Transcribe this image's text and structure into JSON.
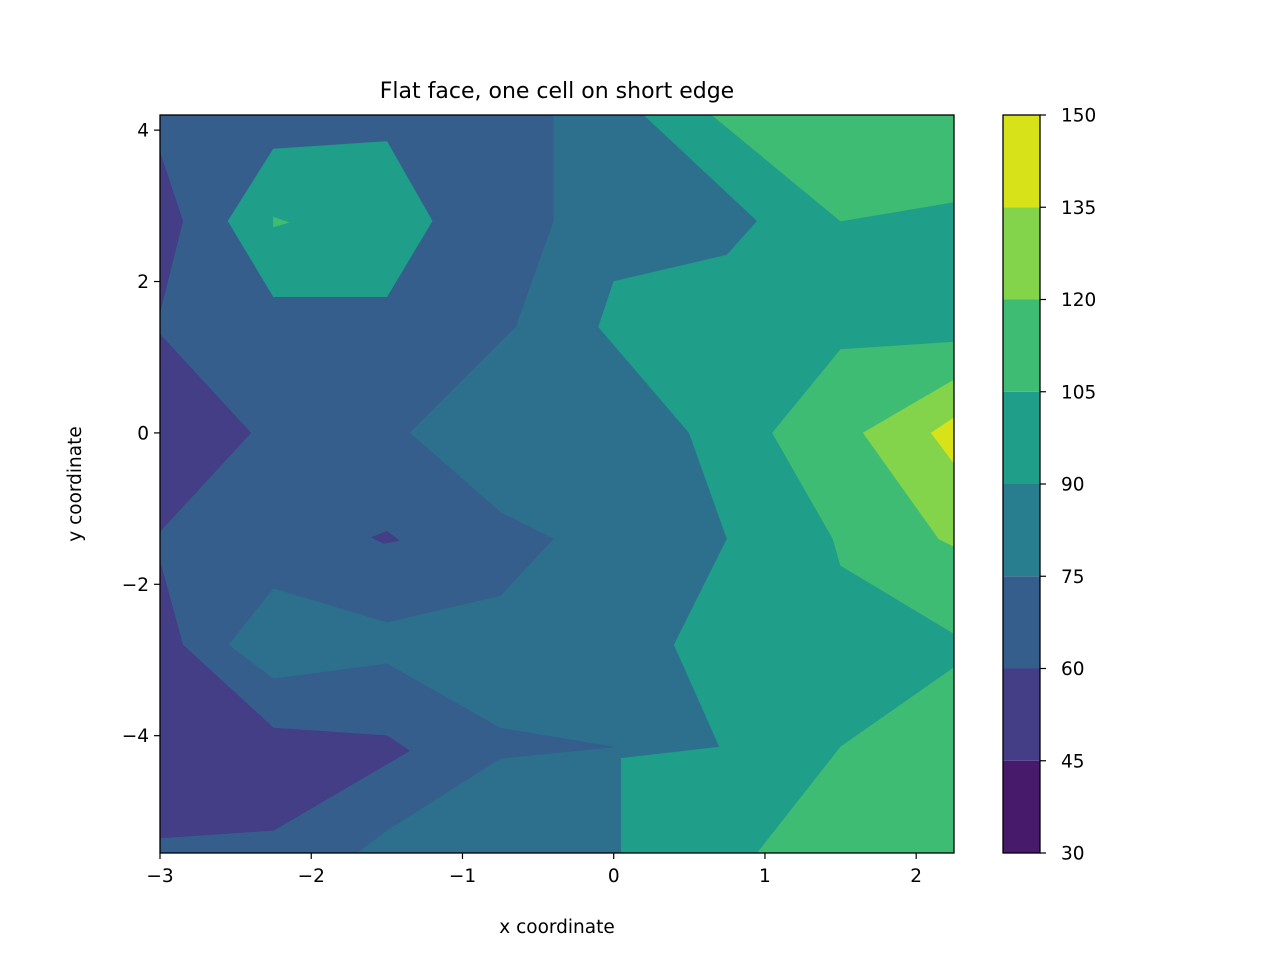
{
  "chart_data": {
    "type": "contourf",
    "title": "Flat face, one cell on short edge",
    "xlabel": "x coordinate",
    "ylabel": "y coordinate",
    "xlim": [
      -3.0,
      2.25
    ],
    "ylim": [
      -5.55,
      4.2
    ],
    "x_ticks": [
      -3,
      -2,
      -1,
      0,
      1,
      2
    ],
    "x_tick_labels": [
      "−3",
      "−2",
      "−1",
      "0",
      "1",
      "2"
    ],
    "y_ticks": [
      -4,
      -2,
      0,
      2,
      4
    ],
    "y_tick_labels": [
      "−4",
      "−2",
      "0",
      "2",
      "4"
    ],
    "grid": false,
    "colormap": "viridis",
    "levels": [
      30,
      45,
      60,
      75,
      90,
      105,
      120,
      135,
      150
    ],
    "colorbar_tick_labels": [
      "30",
      "45",
      "60",
      "75",
      "90",
      "105",
      "120",
      "135",
      "150"
    ],
    "level_colors": [
      "#481a6c",
      "#433e85",
      "#355e8d",
      "#287d8e",
      "#1f9e89",
      "#3fbc73",
      "#84d44b",
      "#d8e219"
    ],
    "background_color": "#2d708e",
    "regions": [
      {
        "level_index": 2,
        "points": [
          [
            -3.0,
            4.2
          ],
          [
            -0.4,
            4.2
          ],
          [
            -0.4,
            2.8
          ],
          [
            -0.65,
            1.4
          ],
          [
            -1.35,
            0.0
          ],
          [
            -0.75,
            -1.05
          ],
          [
            -0.4,
            -1.4
          ],
          [
            -0.75,
            -2.15
          ],
          [
            -1.5,
            -2.5
          ],
          [
            -2.25,
            -2.05
          ],
          [
            -2.55,
            -2.8
          ],
          [
            -2.25,
            -3.25
          ],
          [
            -1.5,
            -3.05
          ],
          [
            -0.75,
            -3.9
          ],
          [
            0.0,
            -4.15
          ],
          [
            -0.75,
            -4.3
          ],
          [
            -1.5,
            -5.25
          ],
          [
            -1.7,
            -5.55
          ],
          [
            -3.0,
            -5.55
          ]
        ]
      },
      {
        "level_index": 4,
        "points": [
          [
            0.2,
            4.2
          ],
          [
            2.25,
            4.2
          ],
          [
            2.25,
            -5.55
          ],
          [
            0.05,
            -5.55
          ],
          [
            0.05,
            -4.3
          ],
          [
            0.7,
            -4.15
          ],
          [
            0.4,
            -2.8
          ],
          [
            0.75,
            -1.4
          ],
          [
            0.5,
            0.0
          ],
          [
            -0.1,
            1.4
          ],
          [
            0.0,
            2.0
          ],
          [
            0.75,
            2.35
          ],
          [
            0.95,
            2.8
          ]
        ]
      },
      {
        "level_index": 4,
        "points": [
          [
            -2.25,
            3.75
          ],
          [
            -1.5,
            3.85
          ],
          [
            -1.2,
            2.8
          ],
          [
            -1.5,
            1.8
          ],
          [
            -2.25,
            1.8
          ],
          [
            -2.55,
            2.8
          ]
        ]
      },
      {
        "level_index": 5,
        "points": [
          [
            0.65,
            4.2
          ],
          [
            2.25,
            4.2
          ],
          [
            2.25,
            3.05
          ],
          [
            1.5,
            2.8
          ]
        ]
      },
      {
        "level_index": 5,
        "points": [
          [
            2.25,
            1.2
          ],
          [
            1.5,
            1.1
          ],
          [
            1.05,
            0.0
          ],
          [
            1.45,
            -1.4
          ],
          [
            1.5,
            -1.75
          ],
          [
            2.25,
            -2.65
          ]
        ]
      },
      {
        "level_index": 5,
        "points": [
          [
            2.25,
            -3.1
          ],
          [
            1.5,
            -4.15
          ],
          [
            0.95,
            -5.55
          ],
          [
            2.25,
            -5.55
          ]
        ]
      },
      {
        "level_index": 6,
        "points": [
          [
            2.25,
            0.7
          ],
          [
            1.65,
            0.0
          ],
          [
            2.15,
            -1.4
          ],
          [
            2.25,
            -1.5
          ]
        ]
      },
      {
        "level_index": 7,
        "points": [
          [
            2.25,
            0.2
          ],
          [
            2.1,
            0.0
          ],
          [
            2.25,
            -0.4
          ]
        ]
      },
      {
        "level_index": 5,
        "points": [
          [
            -2.25,
            2.85
          ],
          [
            -2.15,
            2.78
          ],
          [
            -2.25,
            2.72
          ]
        ]
      },
      {
        "level_index": 1,
        "points": [
          [
            -3.0,
            3.7
          ],
          [
            -2.85,
            2.8
          ],
          [
            -3.0,
            1.6
          ]
        ]
      },
      {
        "level_index": 1,
        "points": [
          [
            -3.0,
            1.3
          ],
          [
            -2.4,
            0.0
          ],
          [
            -3.0,
            -1.3
          ]
        ]
      },
      {
        "level_index": 1,
        "points": [
          [
            -1.6,
            -1.38
          ],
          [
            -1.5,
            -1.3
          ],
          [
            -1.42,
            -1.42
          ],
          [
            -1.52,
            -1.46
          ]
        ]
      },
      {
        "level_index": 1,
        "points": [
          [
            -3.0,
            -1.7
          ],
          [
            -2.85,
            -2.8
          ],
          [
            -2.25,
            -3.9
          ],
          [
            -1.5,
            -4.0
          ],
          [
            -1.35,
            -4.2
          ],
          [
            -2.25,
            -5.25
          ],
          [
            -3.0,
            -5.35
          ]
        ]
      }
    ]
  }
}
